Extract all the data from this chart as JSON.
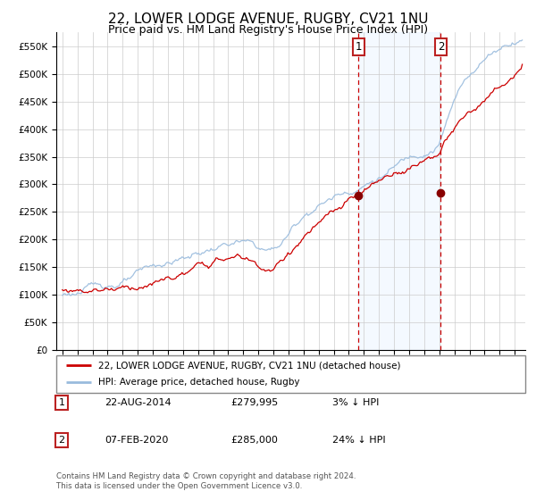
{
  "title": "22, LOWER LODGE AVENUE, RUGBY, CV21 1NU",
  "subtitle": "Price paid vs. HM Land Registry's House Price Index (HPI)",
  "ylim": [
    0,
    575000
  ],
  "yticks": [
    0,
    50000,
    100000,
    150000,
    200000,
    250000,
    300000,
    350000,
    400000,
    450000,
    500000,
    550000
  ],
  "hpi_color": "#99bbdd",
  "price_color": "#cc0000",
  "bg_color": "#ffffff",
  "plot_bg_color": "#ffffff",
  "shade_color": "#ddeeff",
  "grid_color": "#cccccc",
  "marker_color": "#880000",
  "vline_color": "#cc0000",
  "sale1_date": 2014.64,
  "sale1_price": 279995,
  "sale2_date": 2020.1,
  "sale2_price": 285000,
  "legend_entries": [
    "22, LOWER LODGE AVENUE, RUGBY, CV21 1NU (detached house)",
    "HPI: Average price, detached house, Rugby"
  ],
  "table_rows": [
    [
      "1",
      "22-AUG-2014",
      "£279,995",
      "3% ↓ HPI"
    ],
    [
      "2",
      "07-FEB-2020",
      "£285,000",
      "24% ↓ HPI"
    ]
  ],
  "footer": "Contains HM Land Registry data © Crown copyright and database right 2024.\nThis data is licensed under the Open Government Licence v3.0.",
  "title_fontsize": 11,
  "subtitle_fontsize": 9
}
